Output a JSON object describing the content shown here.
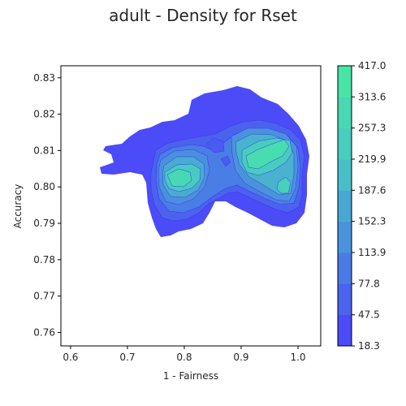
{
  "chart_data": {
    "type": "contour",
    "title": "adult - Density for Rset",
    "xlabel": "1 - Fairness",
    "ylabel": "Accuracy",
    "xlim": [
      0.583,
      1.04
    ],
    "ylim": [
      0.7563,
      0.8333
    ],
    "xticks": [
      "0.6",
      "0.7",
      "0.8",
      "0.9",
      "1.0"
    ],
    "yticks": [
      "0.76",
      "0.77",
      "0.78",
      "0.79",
      "0.80",
      "0.81",
      "0.82",
      "0.83"
    ],
    "colorbar_ticks": [
      "18.3",
      "47.5",
      "77.8",
      "113.9",
      "152.3",
      "187.6",
      "219.9",
      "257.3",
      "313.6",
      "417.0"
    ],
    "colorbar_range": [
      18.3,
      417.0
    ],
    "levels": [
      18.3,
      47.5,
      77.8,
      113.9,
      152.3,
      187.6,
      219.9,
      257.3,
      313.6,
      417.0
    ],
    "peaks": [
      {
        "x": 0.955,
        "y": 0.8082,
        "value": 417.0
      },
      {
        "x": 0.79,
        "y": 0.802,
        "value": 330.0
      },
      {
        "x": 0.975,
        "y": 0.7985,
        "value": 260.0
      }
    ],
    "colormap": [
      "#4b4bf7",
      "#4a8be0",
      "#48c5c6",
      "#48e5a6"
    ],
    "grid": false
  }
}
